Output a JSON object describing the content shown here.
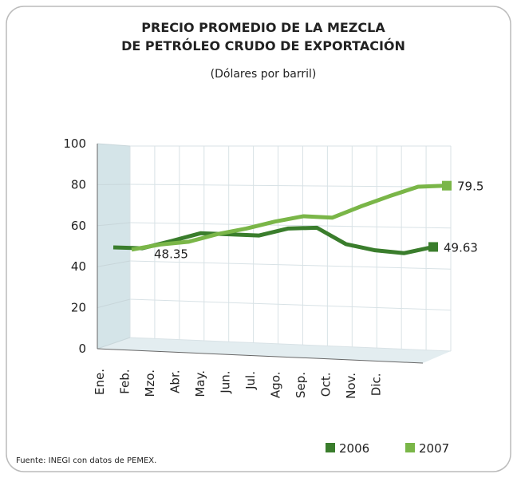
{
  "chart_data": {
    "type": "line",
    "title": [
      "PRECIO PROMEDIO DE LA  MEZCLA",
      "DE PETRÓLEO CRUDO DE EXPORTACIÓN"
    ],
    "subtitle": "(Dólares por barril)",
    "categories": [
      "Ene.",
      "Feb.",
      "Mzo.",
      "Abr.",
      "May.",
      "Jun.",
      "Jul.",
      "Ago.",
      "Sep.",
      "Oct.",
      "Nov.",
      "Dic."
    ],
    "series": [
      {
        "name": "2006",
        "color": "#3a7d2c",
        "values": [
          49.4,
          49.0,
          52.5,
          56.3,
          55.8,
          55.2,
          58.6,
          59.0,
          51.0,
          48.0,
          46.6,
          49.63
        ]
      },
      {
        "name": "2007",
        "color": "#7ab648",
        "values": [
          48.35,
          50.8,
          52.2,
          55.9,
          58.6,
          62.0,
          64.6,
          63.9,
          69.4,
          74.4,
          79.0,
          79.5
        ]
      }
    ],
    "ylim": [
      0,
      100
    ],
    "yticks": [
      0,
      20,
      40,
      60,
      80,
      100
    ],
    "grid": true,
    "source": "Fuente: INEGI con datos de PEMEX."
  }
}
